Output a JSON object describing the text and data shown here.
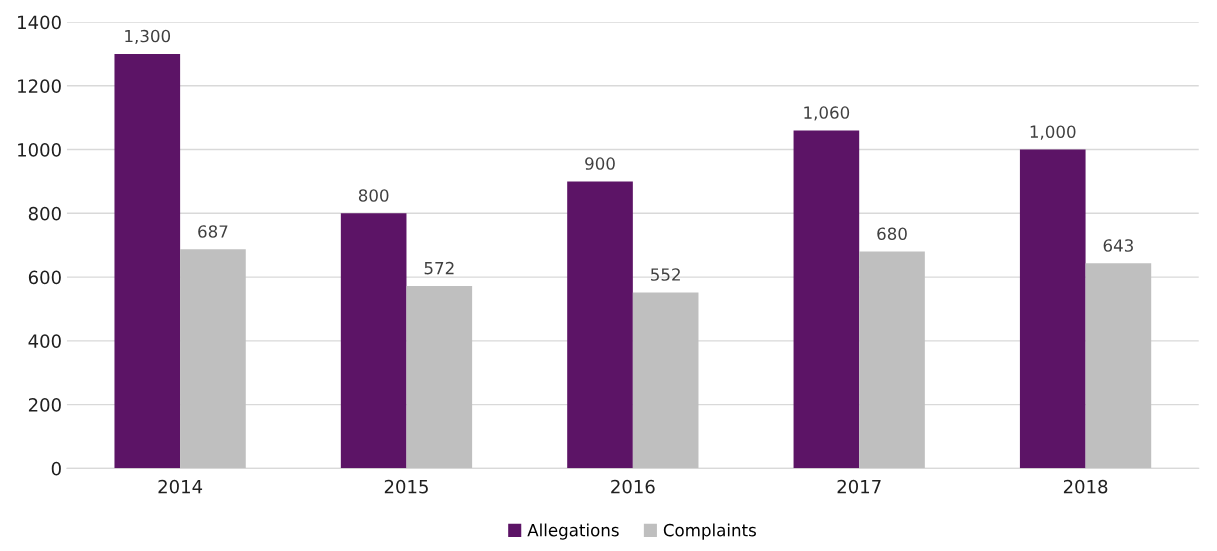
{
  "chart_data": {
    "type": "bar",
    "categories": [
      "2014",
      "2015",
      "2016",
      "2017",
      "2018"
    ],
    "series": [
      {
        "name": "Allegations",
        "color": "#5c1466",
        "values": [
          1300,
          800,
          900,
          1060,
          1000
        ],
        "value_labels": [
          "1,300",
          "800",
          "900",
          "1,060",
          "1,000"
        ]
      },
      {
        "name": "Complaints",
        "color": "#bfbfbf",
        "values": [
          687,
          572,
          552,
          680,
          643
        ],
        "value_labels": [
          "687",
          "572",
          "552",
          "680",
          "643"
        ]
      }
    ],
    "ylim": [
      0,
      1400
    ],
    "yticks": [
      0,
      200,
      400,
      600,
      800,
      1000,
      1200,
      1400
    ],
    "grid": "y",
    "legend": "bottom"
  }
}
